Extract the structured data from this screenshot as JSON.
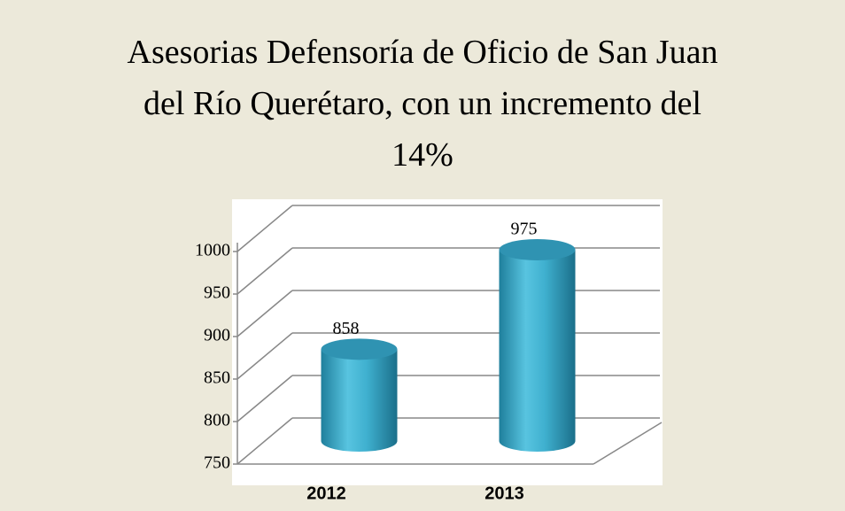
{
  "chart_data": {
    "type": "bar",
    "title": "Asesorias Defensoría de Oficio de San Juan del Río Querétaro, con un incremento del 14%",
    "categories": [
      "2012",
      "2013"
    ],
    "values": [
      858,
      975
    ],
    "color": "#3aa5c4",
    "ylim": [
      750,
      1000
    ],
    "yticks": [
      750,
      800,
      850,
      900,
      950,
      1000
    ],
    "grid": true
  }
}
